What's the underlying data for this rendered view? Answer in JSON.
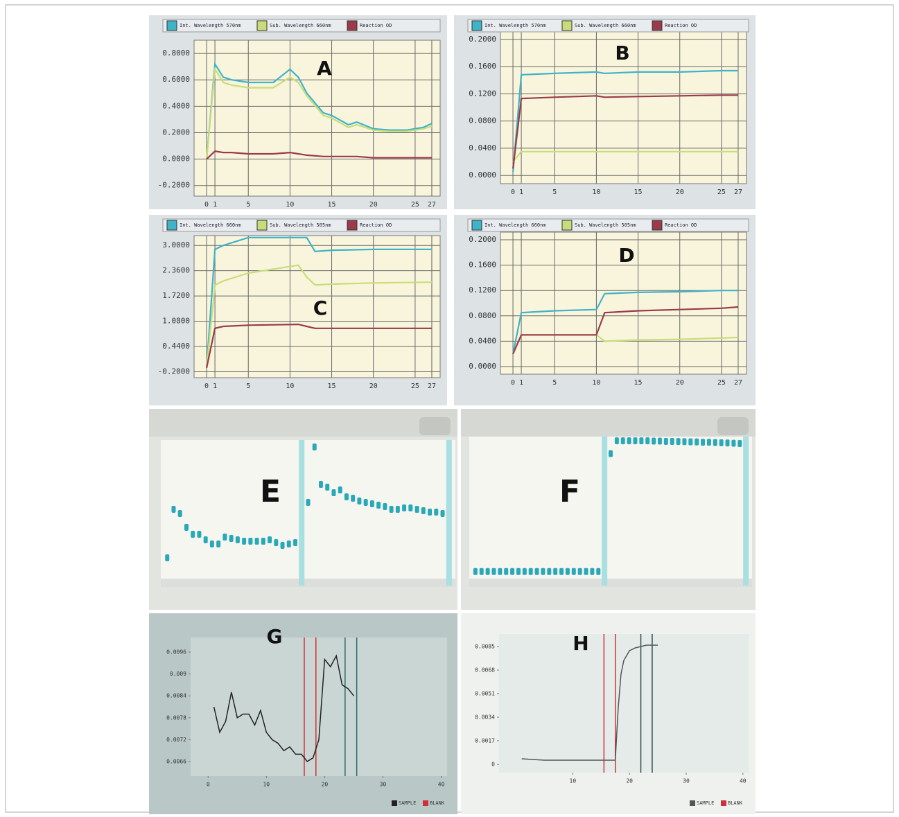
{
  "chart_data": [
    {
      "type": "line",
      "title": "A",
      "x": [
        0,
        1,
        2,
        3,
        5,
        8,
        10,
        11,
        12,
        14,
        15,
        17,
        18,
        20,
        22,
        24,
        26,
        27
      ],
      "xlim": [
        -1.5,
        28
      ],
      "ylim": [
        -0.28,
        0.9
      ],
      "grid": true,
      "xticks": [
        0,
        1,
        5,
        10,
        15,
        20,
        25,
        27
      ],
      "yticks": [
        {
          "value": -0.2,
          "label": "-0.2000"
        },
        {
          "value": 0,
          "label": "0.0000"
        },
        {
          "value": 0.2,
          "label": "0.2000"
        },
        {
          "value": 0.4,
          "label": "0.4000"
        },
        {
          "value": 0.6,
          "label": "0.6000"
        },
        {
          "value": 0.8,
          "label": "0.8000"
        }
      ],
      "series": [
        {
          "name": "Int. Wavelength 570nm",
          "color": "#3fb3c8",
          "values": [
            0,
            0.72,
            0.62,
            0.6,
            0.58,
            0.58,
            0.68,
            0.62,
            0.5,
            0.35,
            0.33,
            0.26,
            0.28,
            0.23,
            0.22,
            0.22,
            0.24,
            0.27
          ]
        },
        {
          "name": "Sub. Wavelength 660nm",
          "color": "#c9dc7a",
          "values": [
            0,
            0.68,
            0.58,
            0.56,
            0.54,
            0.54,
            0.62,
            0.58,
            0.48,
            0.33,
            0.31,
            0.24,
            0.26,
            0.22,
            0.21,
            0.21,
            0.23,
            0.25
          ]
        },
        {
          "name": "Reaction OD",
          "color": "#9a3a4a",
          "values": [
            0,
            0.06,
            0.05,
            0.05,
            0.04,
            0.04,
            0.05,
            0.04,
            0.03,
            0.02,
            0.02,
            0.02,
            0.02,
            0.01,
            0.01,
            0.01,
            0.01,
            0.01
          ]
        }
      ]
    },
    {
      "type": "line",
      "title": "B",
      "x": [
        0,
        1,
        5,
        10,
        11,
        15,
        20,
        25,
        27
      ],
      "xlim": [
        -1.5,
        28
      ],
      "ylim": [
        -0.012,
        0.212
      ],
      "grid": true,
      "xticks": [
        0,
        1,
        5,
        10,
        15,
        20,
        25,
        27
      ],
      "yticks": [
        {
          "value": 0,
          "label": "0.0000"
        },
        {
          "value": 0.04,
          "label": "0.0400"
        },
        {
          "value": 0.08,
          "label": "0.0800"
        },
        {
          "value": 0.12,
          "label": "0.1200"
        },
        {
          "value": 0.16,
          "label": "0.1600"
        },
        {
          "value": 0.2,
          "label": "0.2000"
        }
      ],
      "series": [
        {
          "name": "Int. Wavelength 570nm",
          "color": "#3fb3c8",
          "values": [
            0.005,
            0.148,
            0.15,
            0.152,
            0.15,
            0.152,
            0.152,
            0.154,
            0.154
          ]
        },
        {
          "name": "Sub. Wavelength 660nm",
          "color": "#c9dc7a",
          "values": [
            0.02,
            0.035,
            0.035,
            0.035,
            0.035,
            0.035,
            0.035,
            0.035,
            0.035
          ]
        },
        {
          "name": "Reaction OD",
          "color": "#9a3a4a",
          "values": [
            0.01,
            0.113,
            0.115,
            0.117,
            0.115,
            0.116,
            0.117,
            0.118,
            0.118
          ]
        }
      ]
    },
    {
      "type": "line",
      "title": "C",
      "x": [
        0,
        1,
        2,
        5,
        11,
        12,
        13,
        15,
        20,
        27
      ],
      "xlim": [
        -1.5,
        28
      ],
      "ylim": [
        -0.35,
        3.25
      ],
      "grid": true,
      "xticks": [
        0,
        1,
        5,
        10,
        15,
        20,
        25,
        27
      ],
      "yticks": [
        {
          "value": -0.2,
          "label": "-0.2000"
        },
        {
          "value": 0.44,
          "label": "0.4400"
        },
        {
          "value": 1.08,
          "label": "1.0800"
        },
        {
          "value": 1.72,
          "label": "1.7200"
        },
        {
          "value": 2.36,
          "label": "2.3600"
        },
        {
          "value": 3,
          "label": "3.0000"
        }
      ],
      "series": [
        {
          "name": "Int. Wavelength 660nm",
          "color": "#3fb3c8",
          "values": [
            -0.1,
            2.9,
            3.0,
            3.2,
            3.2,
            3.2,
            2.85,
            2.88,
            2.9,
            2.9
          ]
        },
        {
          "name": "Sub. Wavelength 505nm",
          "color": "#c9dc7a",
          "values": [
            -0.1,
            2.0,
            2.1,
            2.3,
            2.5,
            2.2,
            2.0,
            2.02,
            2.05,
            2.07
          ]
        },
        {
          "name": "Reaction OD",
          "color": "#9a3a4a",
          "values": [
            -0.1,
            0.9,
            0.95,
            0.98,
            1.0,
            0.95,
            0.9,
            0.9,
            0.9,
            0.9
          ]
        }
      ]
    },
    {
      "type": "line",
      "title": "D",
      "x": [
        0,
        1,
        5,
        10,
        11,
        15,
        20,
        25,
        27
      ],
      "xlim": [
        -1.5,
        28
      ],
      "ylim": [
        -0.012,
        0.212
      ],
      "grid": true,
      "xticks": [
        0,
        1,
        5,
        10,
        15,
        20,
        25,
        27
      ],
      "yticks": [
        {
          "value": 0,
          "label": "0.0000"
        },
        {
          "value": 0.04,
          "label": "0.0400"
        },
        {
          "value": 0.08,
          "label": "0.0800"
        },
        {
          "value": 0.12,
          "label": "0.1200"
        },
        {
          "value": 0.16,
          "label": "0.1600"
        },
        {
          "value": 0.2,
          "label": "0.2000"
        }
      ],
      "series": [
        {
          "name": "Int. Wavelength 660nm",
          "color": "#3fb3c8",
          "values": [
            0.02,
            0.085,
            0.088,
            0.09,
            0.115,
            0.117,
            0.118,
            0.12,
            0.12
          ]
        },
        {
          "name": "Sub. Wavelength 505nm",
          "color": "#c9dc7a",
          "values": [
            0.02,
            0.05,
            0.05,
            0.05,
            0.04,
            0.042,
            0.043,
            0.045,
            0.046
          ]
        },
        {
          "name": "Reaction OD",
          "color": "#9a3a4a",
          "values": [
            0.02,
            0.05,
            0.05,
            0.05,
            0.085,
            0.088,
            0.09,
            0.092,
            0.094
          ]
        }
      ]
    },
    {
      "type": "scatter",
      "title": "E",
      "x": [
        1,
        2,
        3,
        4,
        5,
        6,
        7,
        8,
        9,
        10,
        11,
        12,
        13,
        14,
        15,
        16,
        17,
        18,
        19,
        20,
        21,
        23,
        24,
        25,
        26,
        27,
        28,
        29,
        30,
        31,
        32,
        33,
        34,
        35,
        36,
        37,
        38,
        39,
        40,
        41,
        42,
        43,
        44
      ],
      "xlim": [
        0,
        46
      ],
      "ylim": [
        0,
        100
      ],
      "vlines": [
        {
          "color": "#a8dfe0",
          "x": [
            22,
            45
          ]
        }
      ],
      "series": [
        {
          "color": "#2aa8b8",
          "values": [
            15,
            50,
            47,
            37,
            32,
            32,
            28,
            25,
            25,
            30,
            29,
            28,
            27,
            27,
            27,
            27,
            28,
            26,
            24,
            25,
            26,
            55,
            95,
            68,
            66,
            62,
            64,
            59,
            58,
            56,
            55,
            54,
            53,
            52,
            50,
            50,
            51,
            51,
            50,
            49,
            48,
            48,
            47
          ]
        }
      ]
    },
    {
      "type": "scatter",
      "title": "F",
      "x": [
        1,
        2,
        3,
        4,
        5,
        6,
        7,
        8,
        9,
        10,
        11,
        12,
        13,
        14,
        15,
        16,
        17,
        18,
        19,
        20,
        21,
        23,
        24,
        25,
        26,
        27,
        28,
        29,
        30,
        31,
        32,
        33,
        34,
        35,
        36,
        37,
        38,
        39,
        40,
        41,
        42,
        43,
        44
      ],
      "xlim": [
        0,
        46
      ],
      "ylim": [
        0,
        100
      ],
      "vlines": [
        {
          "color": "#a8dfe0",
          "x": [
            22,
            45
          ]
        }
      ],
      "series": [
        {
          "color": "#2aa8b8",
          "values": [
            5,
            5,
            5,
            5,
            5,
            5,
            5,
            5,
            5,
            5,
            5,
            5,
            5,
            5,
            5,
            5,
            5,
            5,
            5,
            5,
            5,
            88,
            97,
            97,
            97,
            97,
            97,
            97,
            96.8,
            96.8,
            96.6,
            96.6,
            96.5,
            96.4,
            96.3,
            96.2,
            96,
            96,
            95.8,
            95.6,
            95.5,
            95.3,
            95.1
          ]
        }
      ]
    },
    {
      "type": "line",
      "title": "G",
      "x": [
        1,
        2,
        3,
        4,
        5,
        6,
        7,
        8,
        9,
        10,
        11,
        12,
        13,
        14,
        15,
        16,
        17,
        18,
        19,
        20,
        21,
        22,
        23,
        24,
        25
      ],
      "xlim": [
        -3,
        41
      ],
      "ylim": [
        0.0062,
        0.01
      ],
      "grid": false,
      "xticks": [
        0,
        10,
        20,
        30,
        40
      ],
      "yticks": [
        0.0066,
        0.0072,
        0.0078,
        0.0084,
        0.009,
        0.0096
      ],
      "vlines": [
        {
          "name": "BLANK",
          "color": "#d0303a",
          "x": [
            16.5,
            18.5
          ]
        },
        {
          "color": "#2a6a6a",
          "x": [
            23.5,
            25.5
          ]
        }
      ],
      "series": [
        {
          "name": "SAMPLE",
          "color": "#222222",
          "values": [
            0.0081,
            0.0074,
            0.0077,
            0.0085,
            0.0078,
            0.0079,
            0.0079,
            0.0076,
            0.008,
            0.0074,
            0.0072,
            0.0071,
            0.0069,
            0.007,
            0.0068,
            0.0068,
            0.0066,
            0.0067,
            0.0072,
            0.0094,
            0.0092,
            0.0095,
            0.0087,
            0.0086,
            0.0084
          ]
        }
      ]
    },
    {
      "type": "line",
      "title": "H",
      "x": [
        1,
        5,
        10,
        15,
        17.5,
        18,
        18.5,
        19,
        20,
        21,
        22,
        23,
        24,
        25
      ],
      "xlim": [
        -3,
        41
      ],
      "ylim": [
        -0.0006,
        0.0094
      ],
      "grid": false,
      "xticks": [
        10,
        20,
        30,
        40
      ],
      "yticks": [
        0,
        0.0017,
        0.0034,
        0.0051,
        0.0068,
        0.0085
      ],
      "vlines": [
        {
          "name": "BLANK",
          "color": "#d0303a",
          "x": [
            15.5,
            17.5
          ]
        },
        {
          "color": "#2a4a4a",
          "x": [
            22,
            24
          ]
        }
      ],
      "series": [
        {
          "name": "SAMPLE",
          "color": "#555555",
          "values": [
            0.0004,
            0.0003,
            0.0003,
            0.0003,
            0.0003,
            0.004,
            0.0065,
            0.0075,
            0.0082,
            0.0084,
            0.0085,
            0.0086,
            0.0086,
            0.0086
          ]
        }
      ]
    }
  ]
}
